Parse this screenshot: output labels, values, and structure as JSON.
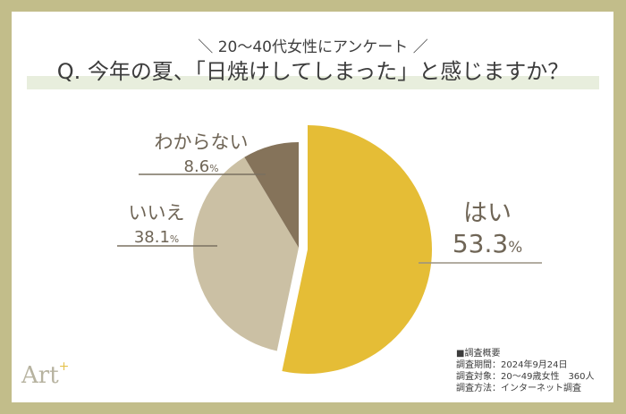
{
  "header": {
    "subtitle": "＼ 20〜40代女性にアンケート ／",
    "title": "Q. 今年の夏、「日焼けしてしまった」と感じますか？"
  },
  "chart_data": {
    "type": "pie",
    "title": "Q. 今年の夏、「日焼けしてしまった」と感じますか？",
    "subtitle": "＼ 20〜40代女性にアンケート ／",
    "categories": [
      "はい",
      "いいえ",
      "わからない"
    ],
    "values": [
      53.3,
      38.1,
      8.6
    ],
    "unit": "%",
    "colors": [
      "#e5bd36",
      "#cbc0a4",
      "#85735a"
    ],
    "exploded": [
      "はい"
    ]
  },
  "labels": {
    "yes": {
      "name": "はい",
      "value": "53.3",
      "unit": "%"
    },
    "no": {
      "name": "いいえ",
      "value": "38.1",
      "unit": "%"
    },
    "unknown": {
      "name": "わからない",
      "value": "8.6",
      "unit": "%"
    }
  },
  "summary": {
    "heading": "■調査概要",
    "period": "調査期間：2024年9月24日",
    "target": "調査対象：20〜49歳女性　360人",
    "method": "調査方法：インターネット調査"
  },
  "logo": {
    "text": "Art",
    "mark": "+"
  }
}
